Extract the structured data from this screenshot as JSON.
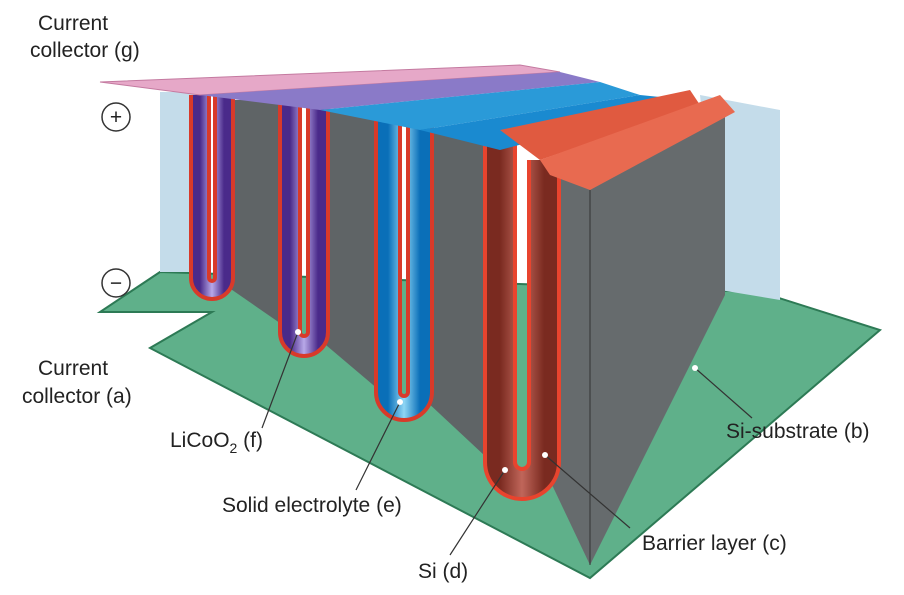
{
  "labels": {
    "collector_g": [
      "Current",
      "collector (g)"
    ],
    "plus": "+",
    "minus": "−",
    "collector_a": [
      "Current",
      "collector (a)"
    ],
    "licoo2": [
      "LiCoO",
      "2",
      " (f)"
    ],
    "electrolyte": "Solid electrolyte (e)",
    "si": "Si (d)",
    "barrier": "Barrier layer (c)",
    "substrate": "Si-substrate (b)"
  }
}
